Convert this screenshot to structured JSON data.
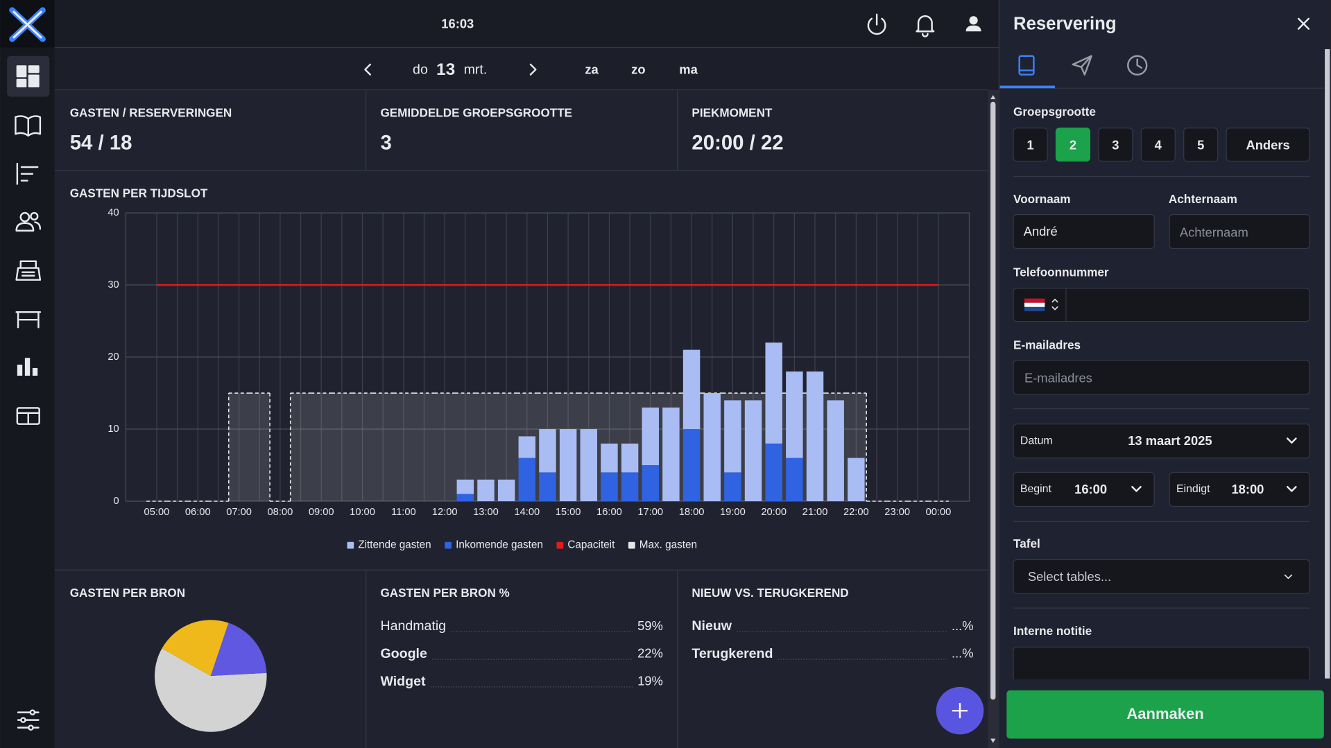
{
  "header": {
    "time": "16:03"
  },
  "date_nav": {
    "day": "do",
    "date": "13",
    "month": "mrt.",
    "next_days": [
      "za",
      "zo",
      "ma"
    ]
  },
  "stats": [
    {
      "label": "GASTEN / RESERVERINGEN",
      "value": "54 / 18"
    },
    {
      "label": "GEMIDDELDE GROEPSGROOTTE",
      "value": "3"
    },
    {
      "label": "PIEKMOMENT",
      "value": "20:00 / 22"
    }
  ],
  "chart_data": [
    {
      "type": "bar",
      "title": "GASTEN PER TIJDSLOT",
      "categories": [
        "05:00",
        null,
        "06:00",
        null,
        "07:00",
        null,
        "08:00",
        null,
        "09:00",
        null,
        "10:00",
        null,
        "11:00",
        null,
        "12:00",
        null,
        "13:00",
        null,
        "14:00",
        null,
        "15:00",
        null,
        "16:00",
        null,
        "17:00",
        null,
        "18:00",
        null,
        "19:00",
        null,
        "20:00",
        null,
        "21:00",
        null,
        "22:00",
        null,
        "23:00",
        null,
        "00:00"
      ],
      "series": [
        {
          "name": "Zittende gasten",
          "color": "#a9bcf4",
          "mark": "bar",
          "values": [
            0,
            0,
            0,
            0,
            0,
            0,
            0,
            0,
            0,
            0,
            0,
            0,
            0,
            0,
            0,
            2,
            3,
            3,
            3,
            6,
            10,
            10,
            4,
            4,
            8,
            13,
            11,
            15,
            10,
            14,
            14,
            12,
            18,
            14,
            6,
            0,
            0,
            0,
            0
          ]
        },
        {
          "name": "Inkomende gasten",
          "color": "#2f63e2",
          "mark": "bar",
          "values": [
            0,
            0,
            0,
            0,
            0,
            0,
            0,
            0,
            0,
            0,
            0,
            0,
            0,
            0,
            0,
            1,
            0,
            0,
            6,
            4,
            0,
            0,
            4,
            4,
            5,
            0,
            10,
            0,
            4,
            0,
            8,
            6,
            0,
            0,
            0,
            0,
            0,
            0,
            0
          ]
        },
        {
          "name": "Capaciteit",
          "color": "#e3191b",
          "mark": "line",
          "values": [
            30,
            30,
            30,
            30,
            30,
            30,
            30,
            30,
            30,
            30,
            30,
            30,
            30,
            30,
            30,
            30,
            30,
            30,
            30,
            30,
            30,
            30,
            30,
            30,
            30,
            30,
            30,
            30,
            30,
            30,
            30,
            30,
            30,
            30,
            30,
            30,
            30,
            30,
            30
          ]
        },
        {
          "name": "Max. gasten",
          "color": "#e6e6e6",
          "mark": "step",
          "values": [
            0,
            0,
            0,
            0,
            15,
            15,
            0,
            15,
            15,
            15,
            15,
            15,
            15,
            15,
            15,
            15,
            15,
            15,
            15,
            15,
            15,
            15,
            15,
            15,
            15,
            15,
            15,
            15,
            15,
            15,
            15,
            15,
            15,
            15,
            15,
            0,
            0,
            0,
            0
          ]
        }
      ],
      "ylim": [
        0,
        40
      ],
      "yticks": [
        0,
        10,
        20,
        30,
        40
      ],
      "grid": true,
      "legend": "bottom"
    },
    {
      "type": "pie",
      "title": "GASTEN PER BRON",
      "categories": [
        "Handmatig",
        "Google",
        "Widget"
      ],
      "values": [
        59,
        22,
        19
      ],
      "value_labels": [
        "59%",
        "22%",
        "19%"
      ],
      "colors": [
        "#d3d3d3",
        "#f0b91b",
        "#6058e0"
      ]
    }
  ],
  "source_pct": {
    "title": "GASTEN PER BRON %"
  },
  "new_vs_returning": {
    "title": "NIEUW VS. TERUGKEREND",
    "rows": [
      {
        "label": "Nieuw",
        "value": "...%"
      },
      {
        "label": "Terugkerend",
        "value": "...%"
      }
    ]
  },
  "panel": {
    "title": "Reservering",
    "group_size_label": "Groepsgrootte",
    "group_sizes": [
      "1",
      "2",
      "3",
      "4",
      "5",
      "Anders"
    ],
    "selected_group_size": "2",
    "first_name": {
      "label": "Voornaam",
      "value": "André"
    },
    "last_name": {
      "label": "Achternaam",
      "placeholder": "Achternaam"
    },
    "phone": {
      "label": "Telefoonnummer"
    },
    "email": {
      "label": "E-mailadres",
      "placeholder": "E-mailadres"
    },
    "date": {
      "label": "Datum",
      "value": "13 maart 2025"
    },
    "start": {
      "label": "Begint",
      "value": "16:00"
    },
    "end": {
      "label": "Eindigt",
      "value": "18:00"
    },
    "table": {
      "label": "Tafel",
      "placeholder": "Select tables..."
    },
    "note": {
      "label": "Interne notitie"
    },
    "submit": "Aanmaken"
  }
}
